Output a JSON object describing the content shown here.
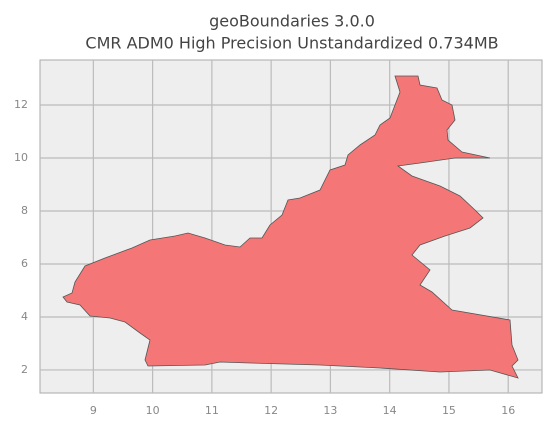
{
  "chart_data": {
    "type": "map",
    "title": "geoBoundaries 3.0.0",
    "subtitle": "CMR ADM0 High Precision Unstandardized 0.734MB",
    "xlim": [
      8.1,
      16.57
    ],
    "ylim": [
      1.13,
      13.7
    ],
    "xticks": [
      9,
      10,
      11,
      12,
      13,
      14,
      15,
      16
    ],
    "yticks": [
      2,
      4,
      6,
      8,
      10,
      12
    ],
    "grid": true,
    "color": "#f47676"
  }
}
